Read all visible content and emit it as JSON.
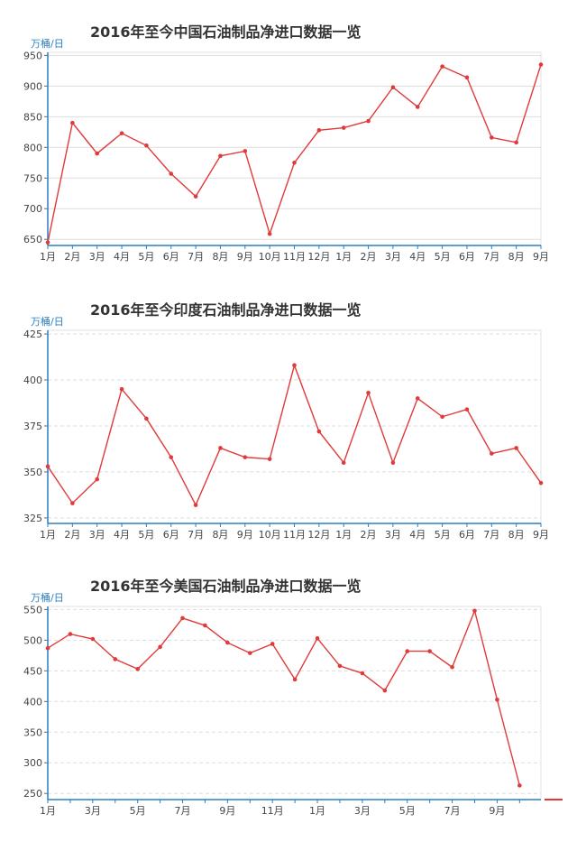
{
  "charts": [
    {
      "title": "2016年至今中国石油制品净进口数据一览",
      "ylabel": "万桶/日",
      "chart_data": {
        "type": "line",
        "categories": [
          "1月",
          "2月",
          "3月",
          "4月",
          "5月",
          "6月",
          "7月",
          "8月",
          "9月",
          "10月",
          "11月",
          "12月",
          "1月",
          "2月",
          "3月",
          "4月",
          "5月",
          "6月",
          "7月",
          "8月",
          "9月"
        ],
        "tick_labels": [
          "1月",
          "2月",
          "3月",
          "4月",
          "5月",
          "6月",
          "7月",
          "8月",
          "9月",
          "10月",
          "11月",
          "12月",
          "1月",
          "2月",
          "3月",
          "4月",
          "5月",
          "6月",
          "7月",
          "8月",
          "9月"
        ],
        "values": [
          645,
          840,
          790,
          823,
          803,
          757,
          720,
          786,
          794,
          659,
          775,
          828,
          832,
          843,
          898,
          866,
          932,
          914,
          816,
          808,
          935
        ],
        "ylim": [
          640,
          955
        ],
        "yticks": [
          650,
          700,
          750,
          800,
          850,
          900,
          950
        ],
        "grid": "solid",
        "color": "#e03a3a"
      }
    },
    {
      "title": "2016年至今印度石油制品净进口数据一览",
      "ylabel": "万桶/日",
      "chart_data": {
        "type": "line",
        "categories": [
          "1月",
          "2月",
          "3月",
          "4月",
          "5月",
          "6月",
          "7月",
          "8月",
          "9月",
          "10月",
          "11月",
          "12月",
          "1月",
          "2月",
          "3月",
          "4月",
          "5月",
          "6月",
          "7月",
          "8月",
          "9月"
        ],
        "tick_labels": [
          "1月",
          "2月",
          "3月",
          "4月",
          "5月",
          "6月",
          "7月",
          "8月",
          "9月",
          "10月",
          "11月",
          "12月",
          "1月",
          "2月",
          "3月",
          "4月",
          "5月",
          "6月",
          "7月",
          "8月",
          "9月"
        ],
        "values": [
          353,
          333,
          346,
          395,
          379,
          358,
          332,
          363,
          358,
          357,
          408,
          372,
          355,
          393,
          355,
          390,
          380,
          384,
          360,
          363,
          344
        ],
        "ylim": [
          322,
          427
        ],
        "yticks": [
          325,
          350,
          375,
          400,
          425
        ],
        "grid": "dashed",
        "color": "#e03a3a"
      }
    },
    {
      "title": "2016年至今美国石油制品净进口数据一览",
      "ylabel": "万桶/日",
      "chart_data": {
        "type": "line",
        "categories": [
          "1月",
          "2月",
          "3月",
          "4月",
          "5月",
          "6月",
          "7月",
          "8月",
          "9月",
          "10月",
          "11月",
          "12月",
          "1月",
          "2月",
          "3月",
          "4月",
          "5月",
          "6月",
          "7月",
          "8月",
          "9月",
          "10月"
        ],
        "tick_labels": [
          "1月",
          "",
          "3月",
          "",
          "5月",
          "",
          "7月",
          "",
          "9月",
          "",
          "11月",
          "",
          "1月",
          "",
          "3月",
          "",
          "5月",
          "",
          "7月",
          "",
          "9月",
          ""
        ],
        "values": [
          487,
          510,
          502,
          469,
          453,
          489,
          536,
          524,
          496,
          479,
          494,
          436,
          503,
          458,
          446,
          418,
          482,
          482,
          456,
          548,
          403,
          263
        ],
        "ylim": [
          240,
          555
        ],
        "yticks": [
          250,
          300,
          350,
          400,
          450,
          500,
          550
        ],
        "grid": "dashed",
        "color": "#e03a3a"
      }
    }
  ]
}
